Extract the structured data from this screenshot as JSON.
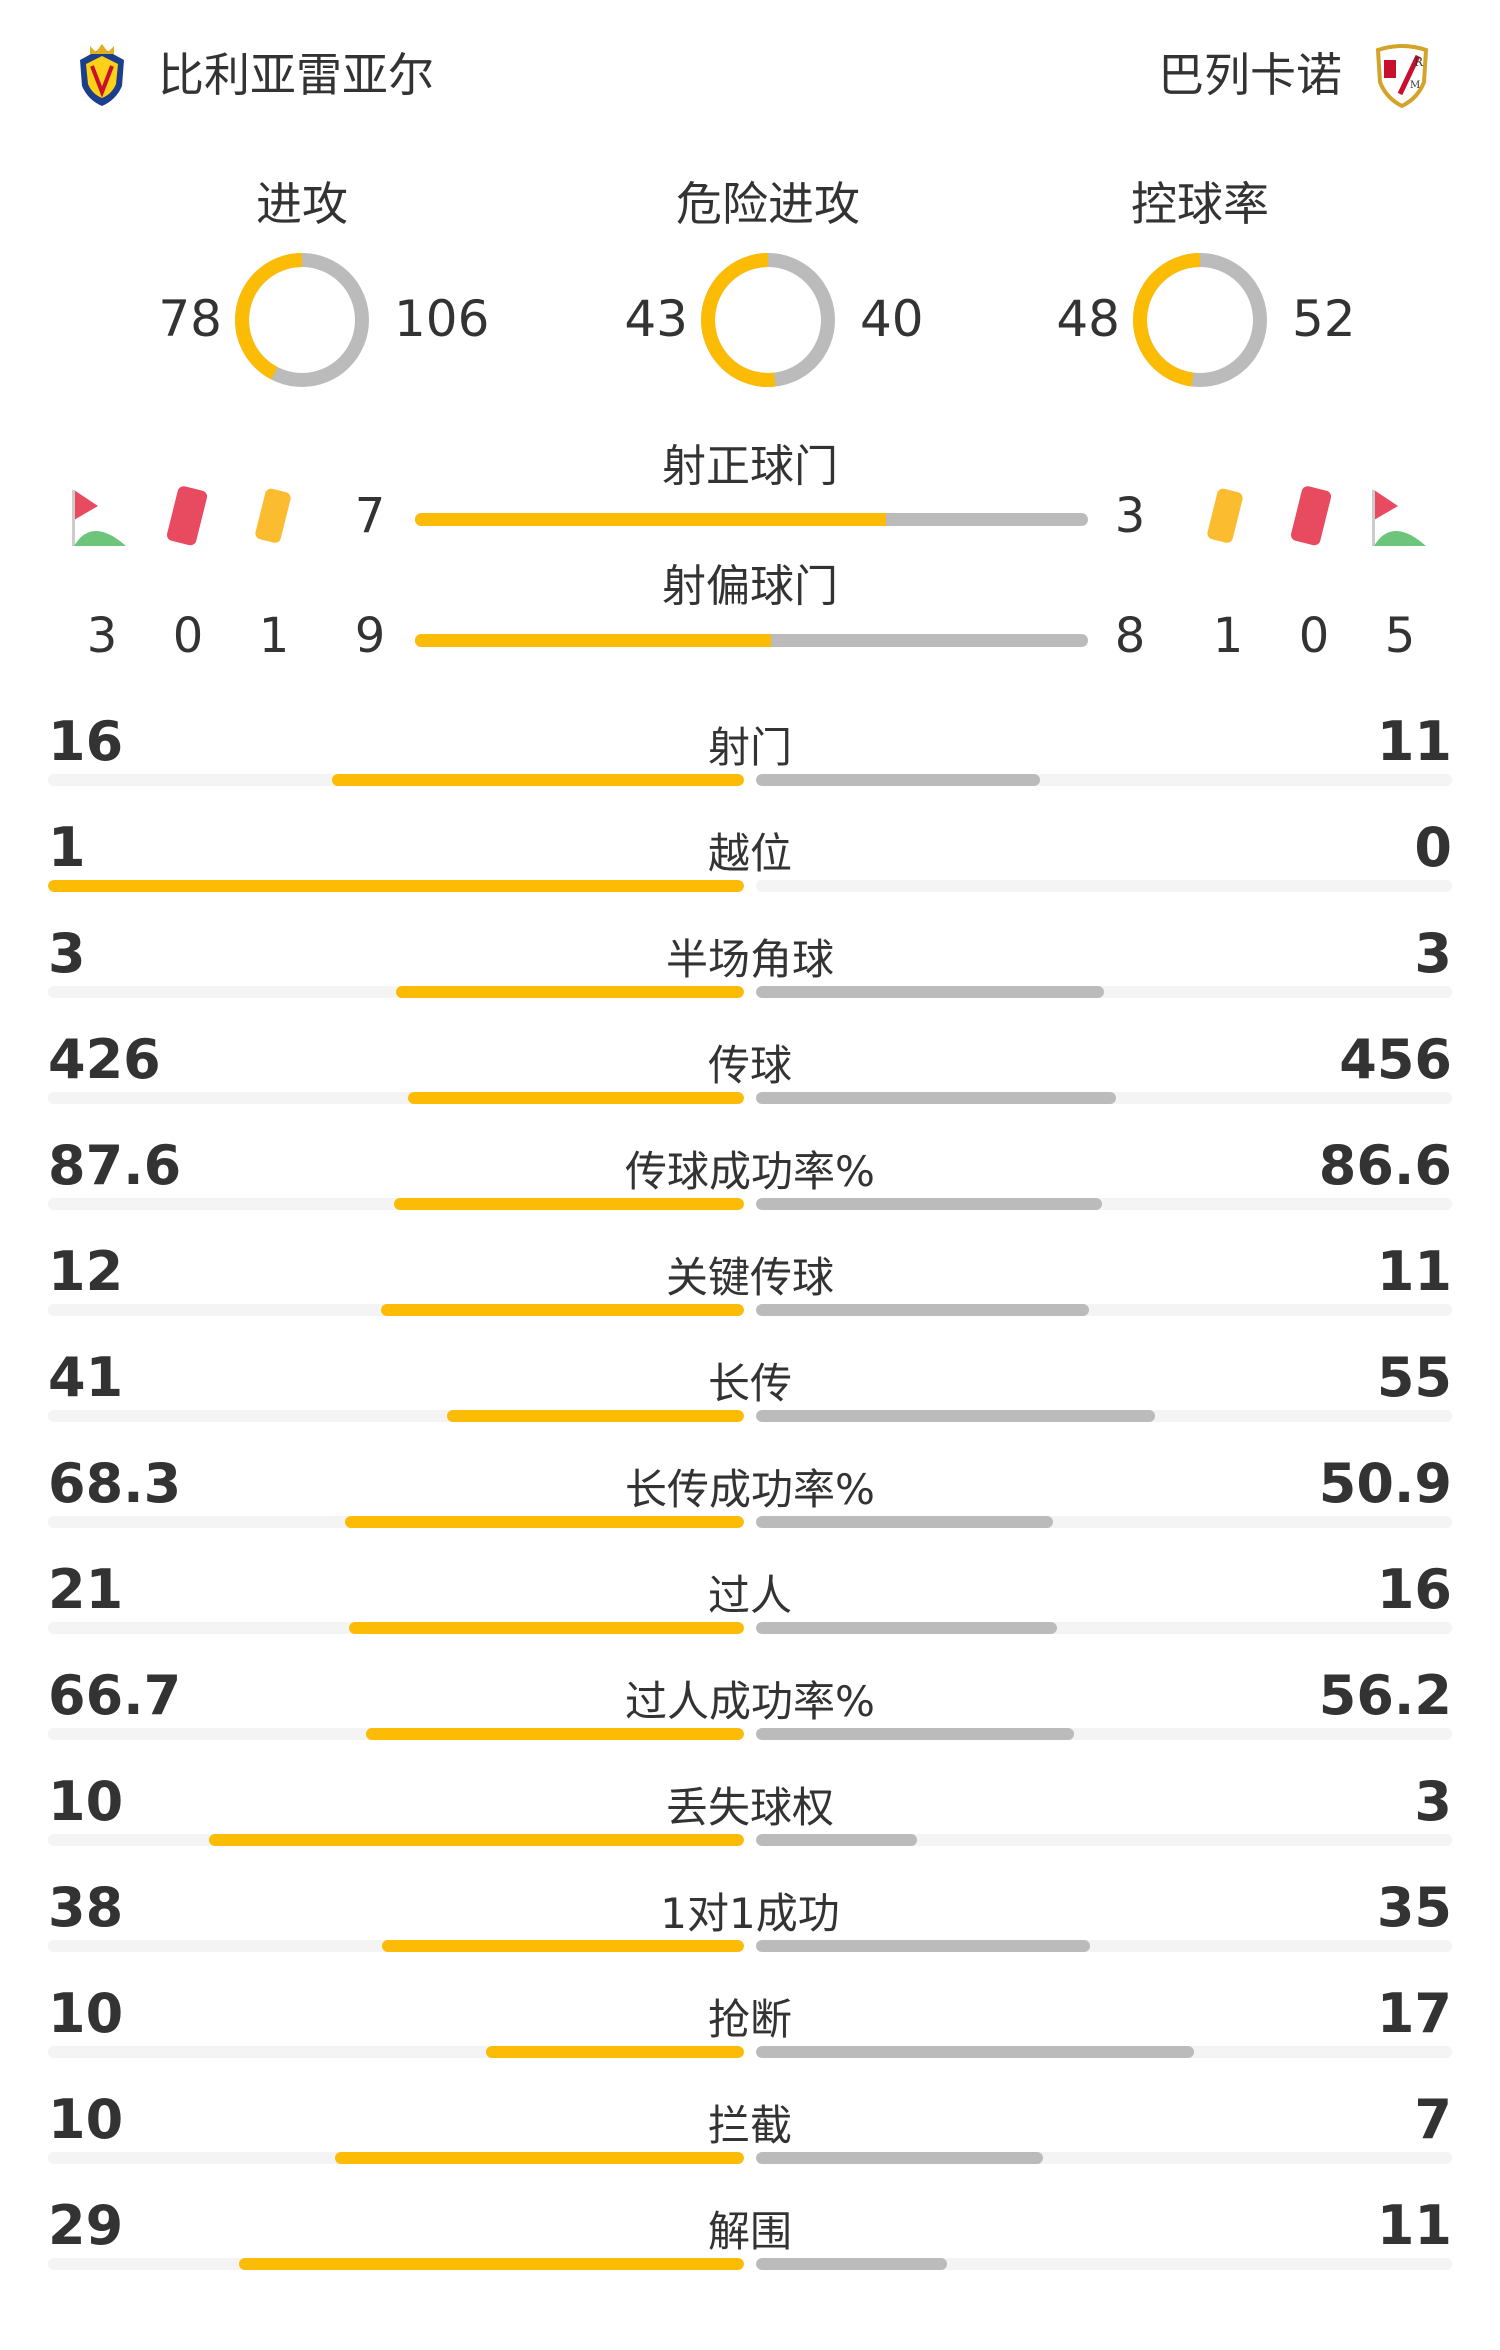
{
  "colors": {
    "home": "#fcbc05",
    "away": "#bbbbbb",
    "track": "#f4f4f4"
  },
  "home": {
    "name": "比利亚雷亚尔",
    "logo_icon": "villarreal-crest-icon"
  },
  "away": {
    "name": "巴列卡诺",
    "logo_icon": "rayo-vallecano-crest-icon"
  },
  "donuts": [
    {
      "title": "进攻",
      "home": "78",
      "away": "106"
    },
    {
      "title": "危险进攻",
      "home": "43",
      "away": "40"
    },
    {
      "title": "控球率",
      "home": "48",
      "away": "52"
    }
  ],
  "shots_on_target": {
    "label": "射正球门",
    "home": "7",
    "away": "3"
  },
  "shots_off_target": {
    "label": "射偏球门",
    "home": "9",
    "away": "8"
  },
  "home_counts": {
    "corners": "3",
    "red_cards": "0",
    "yellow_cards": "1"
  },
  "away_counts": {
    "corners": "5",
    "red_cards": "0",
    "yellow_cards": "1"
  },
  "stats": [
    {
      "label": "射门",
      "home": "16",
      "away": "11"
    },
    {
      "label": "越位",
      "home": "1",
      "away": "0"
    },
    {
      "label": "半场角球",
      "home": "3",
      "away": "3"
    },
    {
      "label": "传球",
      "home": "426",
      "away": "456"
    },
    {
      "label": "传球成功率%",
      "home": "87.6",
      "away": "86.6"
    },
    {
      "label": "关键传球",
      "home": "12",
      "away": "11"
    },
    {
      "label": "长传",
      "home": "41",
      "away": "55"
    },
    {
      "label": "长传成功率%",
      "home": "68.3",
      "away": "50.9"
    },
    {
      "label": "过人",
      "home": "21",
      "away": "16"
    },
    {
      "label": "过人成功率%",
      "home": "66.7",
      "away": "56.2"
    },
    {
      "label": "丢失球权",
      "home": "10",
      "away": "3"
    },
    {
      "label": "1对1成功",
      "home": "38",
      "away": "35"
    },
    {
      "label": "抢断",
      "home": "10",
      "away": "17"
    },
    {
      "label": "拦截",
      "home": "10",
      "away": "7"
    },
    {
      "label": "解围",
      "home": "29",
      "away": "11"
    }
  ]
}
